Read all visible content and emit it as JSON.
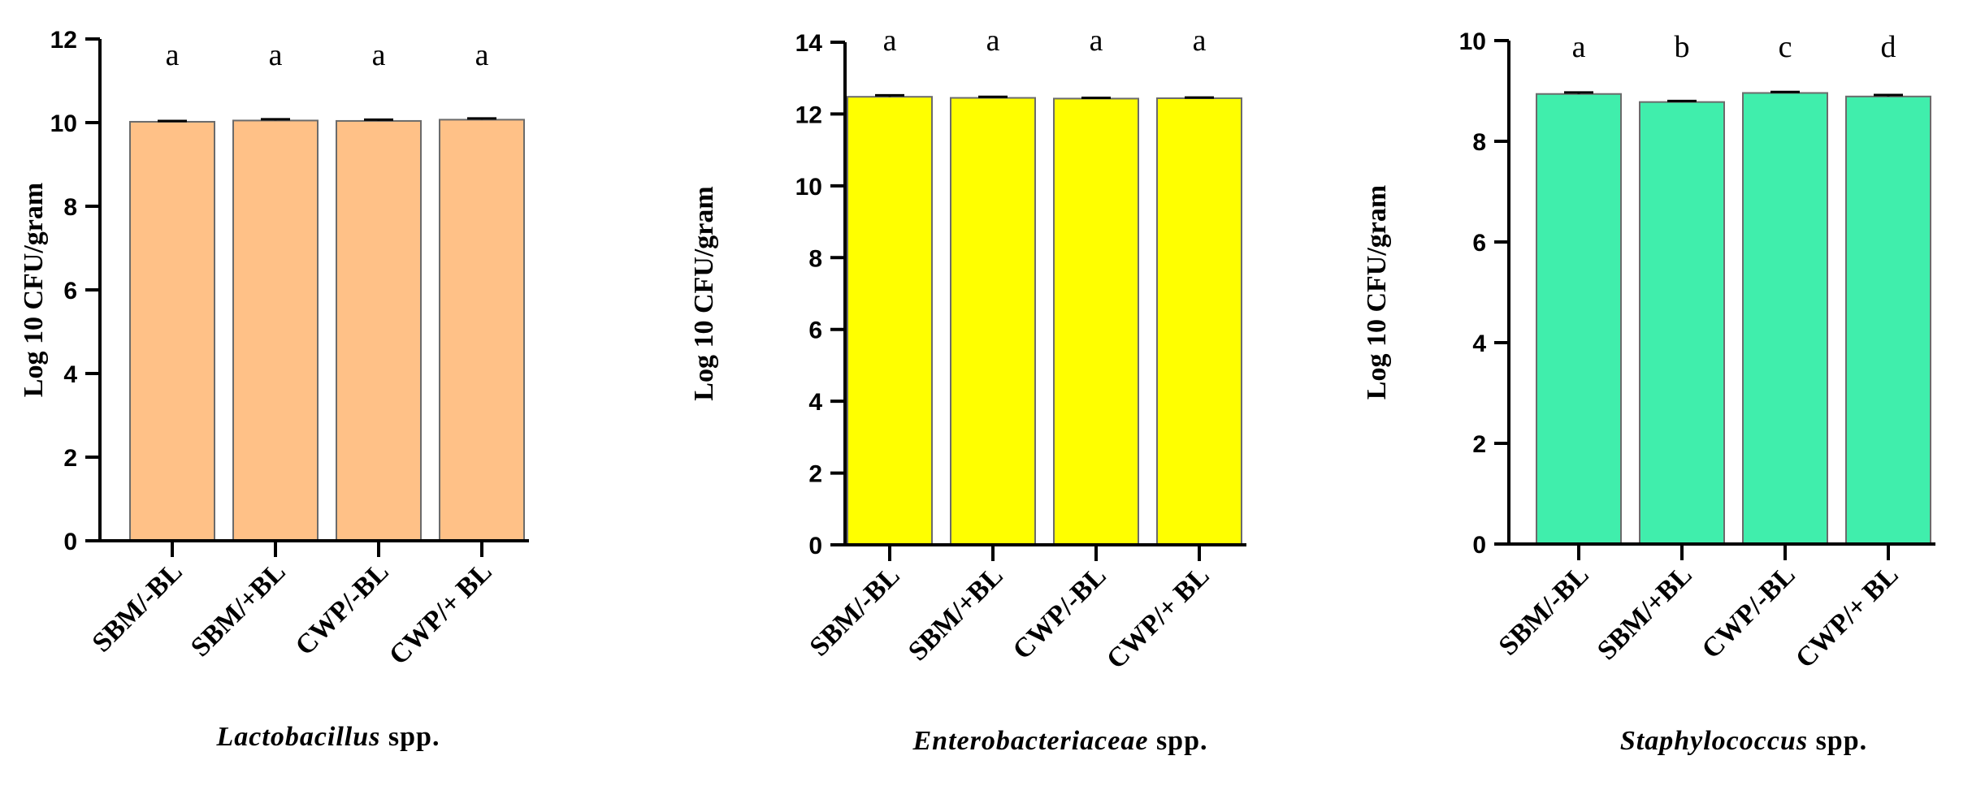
{
  "chart_data": [
    {
      "type": "bar",
      "caption_italic": "Lactobacillus",
      "caption_rest": " spp.",
      "ylabel": "Log 10 CFU/gram",
      "categories": [
        "SBM/-BL",
        "SBM/+BL",
        "CWP/-BL",
        "CWP/+ BL"
      ],
      "values": [
        10.02,
        10.05,
        10.04,
        10.07
      ],
      "errors": [
        0.02,
        0.03,
        0.03,
        0.03
      ],
      "significance": [
        "a",
        "a",
        "a",
        "a"
      ],
      "ylim": [
        0,
        12
      ],
      "yticks": [
        0,
        2,
        4,
        6,
        8,
        10,
        12
      ],
      "bar_color": "#FFC187"
    },
    {
      "type": "bar",
      "caption_italic": "Enterobacteriaceae",
      "caption_rest": " spp.",
      "ylabel": "Log 10 CFU/gram",
      "categories": [
        "SBM/-BL",
        "SBM/+BL",
        "CWP/-BL",
        "CWP/+ BL"
      ],
      "values": [
        12.48,
        12.45,
        12.43,
        12.44
      ],
      "errors": [
        0.04,
        0.03,
        0.02,
        0.02
      ],
      "significance": [
        "a",
        "a",
        "a",
        "a"
      ],
      "ylim": [
        0,
        14
      ],
      "yticks": [
        0,
        2,
        4,
        6,
        8,
        10,
        12,
        14
      ],
      "bar_color": "#FFFF00"
    },
    {
      "type": "bar",
      "caption_italic": "Staphylococcus",
      "caption_rest": " spp.",
      "ylabel": "Log 10 CFU/gram",
      "categories": [
        "SBM/-BL",
        "SBM/+BL",
        "CWP/-BL",
        "CWP/+ BL"
      ],
      "values": [
        8.94,
        8.78,
        8.96,
        8.89
      ],
      "errors": [
        0.03,
        0.02,
        0.02,
        0.03
      ],
      "significance": [
        "a",
        "b",
        "c",
        "d"
      ],
      "ylim": [
        0,
        10
      ],
      "yticks": [
        0,
        2,
        4,
        6,
        8,
        10
      ],
      "bar_color": "#40EEAC"
    }
  ]
}
